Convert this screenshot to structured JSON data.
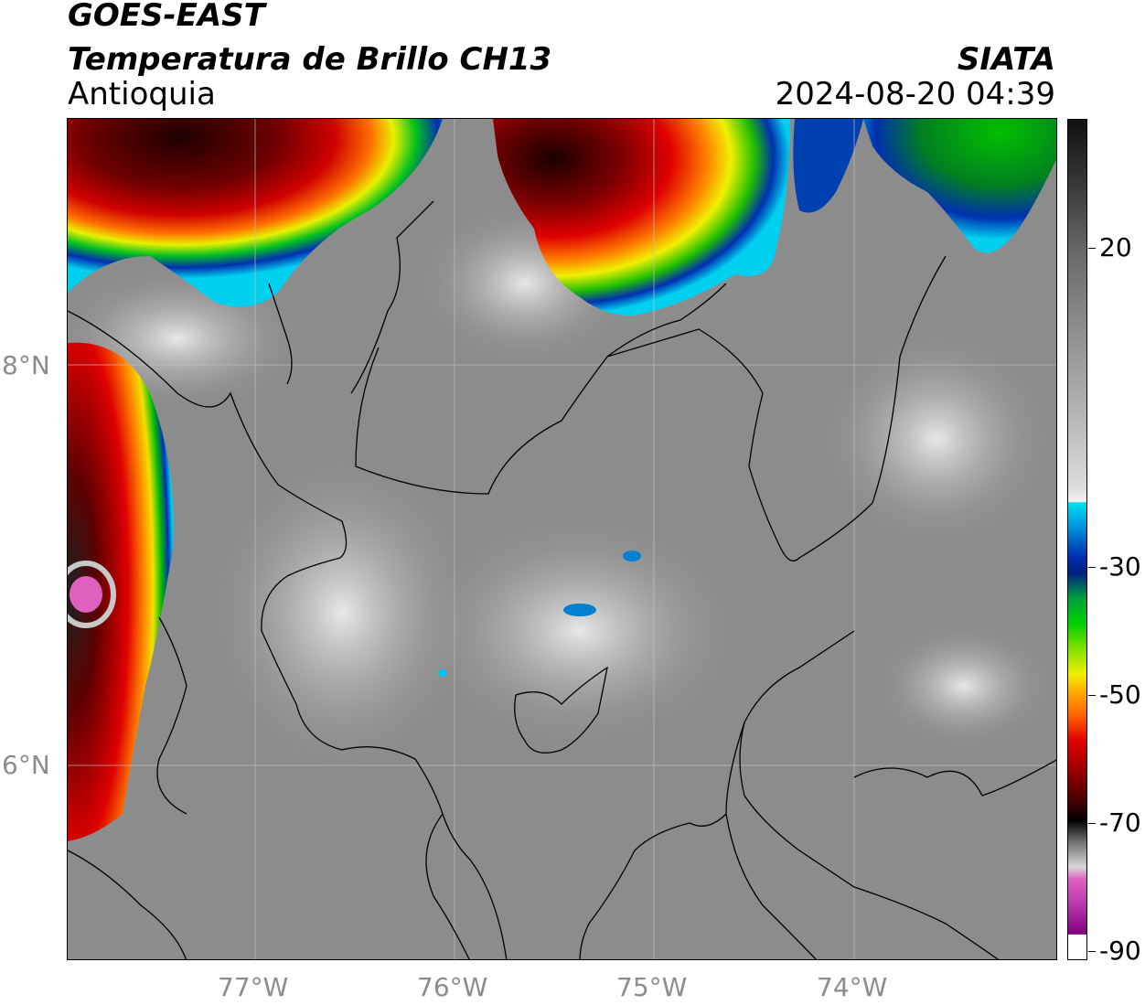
{
  "header": {
    "satellite": "GOES-EAST",
    "product": "Temperatura de Brillo CH13",
    "region": "Antioquia",
    "brand": "SIATA",
    "datetime": "2024-08-20 04:39"
  },
  "map": {
    "lat_ticks": [
      "8°N",
      "6°N"
    ],
    "lon_ticks": [
      "77°W",
      "76°W",
      "75°W",
      "74°W"
    ]
  },
  "colorbar": {
    "labels": [
      "20",
      "-30",
      "-50",
      "-70",
      "-90"
    ],
    "colors": {
      "warm_gray": "#8a8a8a",
      "light_gray": "#e6e6e6",
      "cyan": "#00e0f0",
      "blue": "#0020a0",
      "green": "#00c000",
      "yellow": "#f0f000",
      "orange": "#ff8000",
      "red": "#e00000",
      "dark_red": "#600000",
      "black": "#000000",
      "pink": "#e070c0",
      "purple": "#800080"
    }
  }
}
